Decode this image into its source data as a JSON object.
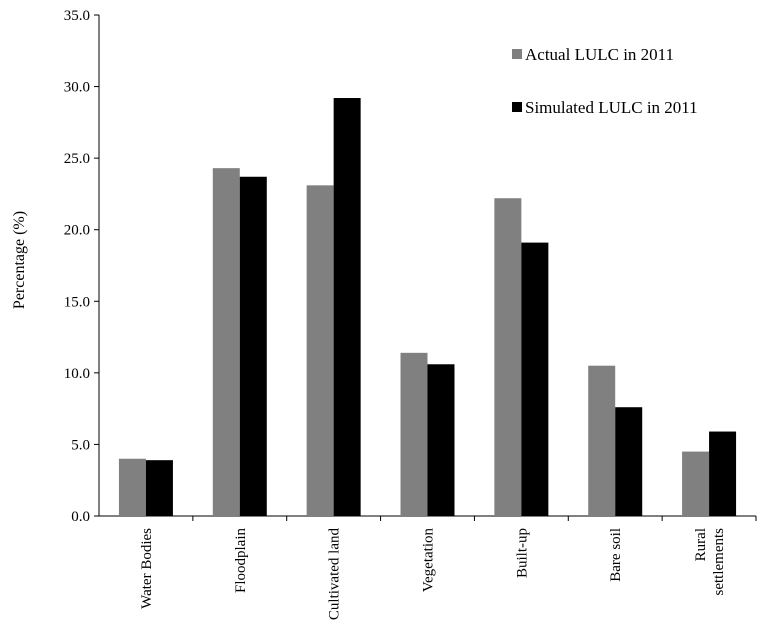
{
  "chart_data": {
    "type": "bar",
    "categories": [
      "Water Bodies",
      "Floodplain",
      "Cultivated land",
      "Vegetation",
      "Built-up",
      "Bare soil",
      "Rural settlements"
    ],
    "category_lines": [
      [
        "Water Bodies"
      ],
      [
        "Floodplain"
      ],
      [
        "Cultivated land"
      ],
      [
        "Vegetation"
      ],
      [
        "Built-up"
      ],
      [
        "Bare soil"
      ],
      [
        "Rural",
        "settlements"
      ]
    ],
    "series": [
      {
        "name": "Actual LULC in 2011",
        "color": "#808080",
        "values": [
          4.0,
          24.3,
          23.1,
          11.4,
          22.2,
          10.5,
          4.5
        ]
      },
      {
        "name": "Simulated LULC in 2011",
        "color": "#000000",
        "values": [
          3.9,
          23.7,
          29.2,
          10.6,
          19.1,
          7.6,
          5.9
        ]
      }
    ],
    "title": "",
    "xlabel": "",
    "ylabel": "Percentage (%)",
    "ylim": [
      0,
      35
    ],
    "yticks": [
      "0.0",
      "5.0",
      "10.0",
      "15.0",
      "20.0",
      "25.0",
      "30.0",
      "35.0"
    ],
    "grid": false,
    "legend_position": "top-right"
  }
}
